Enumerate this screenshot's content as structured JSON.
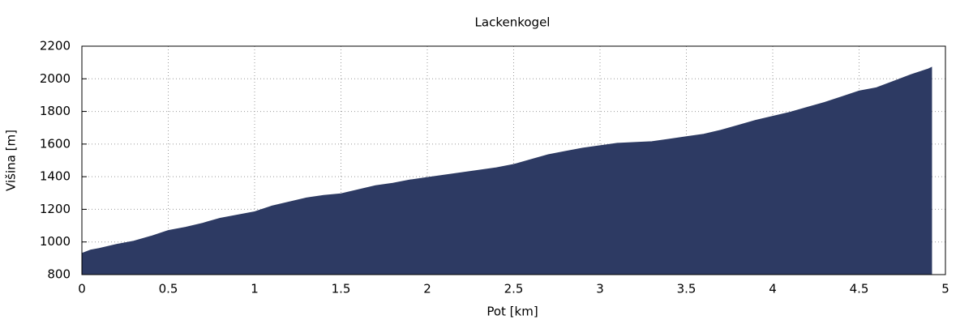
{
  "chart_data": {
    "type": "area",
    "title": "Lackenkogel",
    "xlabel": "Pot [km]",
    "ylabel": "Višina [m]",
    "x": [
      0,
      0.05,
      0.1,
      0.2,
      0.3,
      0.4,
      0.5,
      0.6,
      0.7,
      0.8,
      0.9,
      1.0,
      1.1,
      1.2,
      1.3,
      1.4,
      1.5,
      1.6,
      1.7,
      1.8,
      1.9,
      2.0,
      2.1,
      2.2,
      2.3,
      2.4,
      2.5,
      2.6,
      2.7,
      2.8,
      2.9,
      3.0,
      3.1,
      3.2,
      3.3,
      3.4,
      3.5,
      3.6,
      3.7,
      3.8,
      3.9,
      4.0,
      4.1,
      4.2,
      4.3,
      4.4,
      4.5,
      4.6,
      4.7,
      4.8,
      4.9,
      4.92
    ],
    "values": [
      930,
      950,
      960,
      985,
      1005,
      1035,
      1070,
      1090,
      1115,
      1145,
      1165,
      1185,
      1220,
      1245,
      1270,
      1285,
      1295,
      1320,
      1345,
      1360,
      1380,
      1395,
      1410,
      1425,
      1440,
      1455,
      1475,
      1505,
      1535,
      1555,
      1575,
      1590,
      1605,
      1610,
      1615,
      1630,
      1645,
      1660,
      1685,
      1715,
      1745,
      1770,
      1795,
      1825,
      1855,
      1890,
      1925,
      1945,
      1985,
      2025,
      2060,
      2070
    ],
    "color": "#2d3a63",
    "xlim": [
      0,
      5
    ],
    "xticks": [
      0,
      0.5,
      1,
      1.5,
      2,
      2.5,
      3,
      3.5,
      4,
      4.5,
      5
    ],
    "ylim": [
      800,
      2200
    ],
    "yticks": [
      800,
      1000,
      1200,
      1400,
      1600,
      1800,
      2000,
      2200
    ],
    "grid": true
  }
}
